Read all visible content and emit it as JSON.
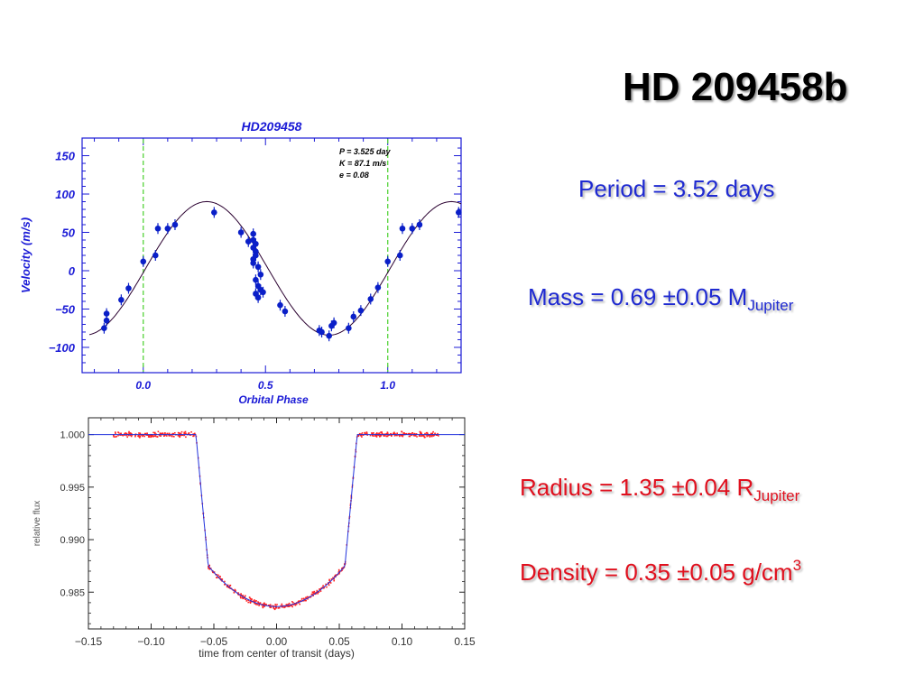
{
  "slide": {
    "title": "HD 209458b",
    "period_text": "Period = 3.52 days",
    "mass_text": "Mass = 0.69 ±0.05 M",
    "mass_sub": "Jupiter",
    "radius_text": "Radius = 1.35 ±0.04 R",
    "radius_sub": "Jupiter",
    "density_text": "Density = 0.35 ±0.05 g/cm",
    "density_sup": "3",
    "colors": {
      "title": "#000000",
      "blue_text": "#1f2ad1",
      "red_text": "#e0101e"
    }
  },
  "chart_data": [
    {
      "type": "scatter",
      "title": "HD209458",
      "xlabel": "Orbital Phase",
      "ylabel": "Velocity  (m/s)",
      "xlim": [
        -0.25,
        1.3
      ],
      "ylim": [
        -133,
        173
      ],
      "x_ticks": [
        0.0,
        0.5,
        1.0
      ],
      "x_tick_labels": [
        "0.0",
        "0.5",
        "1.0"
      ],
      "y_ticks": [
        150,
        100,
        50,
        0,
        -50,
        -100
      ],
      "y_tick_labels": [
        "150",
        "100",
        "50",
        "0",
        "−50",
        "−100"
      ],
      "annotations": [
        "P = 3.525 day",
        "K = 87.1 m/s",
        "e = 0.08"
      ],
      "vlines": [
        0.0,
        1.0
      ],
      "colors": {
        "points": "#0a1fc8",
        "model": "#2a0030",
        "vline": "#55d33a",
        "axes_text": "#1a1ad6"
      },
      "model": {
        "K": 87.1,
        "phase_of_max": 0.26,
        "offset": 3
      },
      "points": [
        {
          "x": -0.16,
          "y": -75
        },
        {
          "x": -0.15,
          "y": -65
        },
        {
          "x": -0.15,
          "y": -56
        },
        {
          "x": -0.09,
          "y": -38
        },
        {
          "x": -0.06,
          "y": -23
        },
        {
          "x": 0.0,
          "y": 12
        },
        {
          "x": 0.05,
          "y": 20
        },
        {
          "x": 0.06,
          "y": 55
        },
        {
          "x": 0.1,
          "y": 55
        },
        {
          "x": 0.13,
          "y": 60
        },
        {
          "x": 0.29,
          "y": 76
        },
        {
          "x": 0.4,
          "y": 50
        },
        {
          "x": 0.43,
          "y": 38
        },
        {
          "x": 0.45,
          "y": 48
        },
        {
          "x": 0.45,
          "y": 40
        },
        {
          "x": 0.45,
          "y": 30
        },
        {
          "x": 0.46,
          "y": 25
        },
        {
          "x": 0.45,
          "y": 15
        },
        {
          "x": 0.46,
          "y": 20
        },
        {
          "x": 0.46,
          "y": 35
        },
        {
          "x": 0.45,
          "y": 10
        },
        {
          "x": 0.47,
          "y": 5
        },
        {
          "x": 0.48,
          "y": -5
        },
        {
          "x": 0.46,
          "y": -12
        },
        {
          "x": 0.47,
          "y": -20
        },
        {
          "x": 0.48,
          "y": -25
        },
        {
          "x": 0.46,
          "y": -30
        },
        {
          "x": 0.47,
          "y": -35
        },
        {
          "x": 0.49,
          "y": -28
        },
        {
          "x": 0.56,
          "y": -45
        },
        {
          "x": 0.58,
          "y": -53
        },
        {
          "x": 0.72,
          "y": -78
        },
        {
          "x": 0.73,
          "y": -80
        },
        {
          "x": 0.76,
          "y": -85
        },
        {
          "x": 0.77,
          "y": -72
        },
        {
          "x": 0.78,
          "y": -68
        },
        {
          "x": 0.84,
          "y": -75
        },
        {
          "x": 0.86,
          "y": -60
        },
        {
          "x": 0.89,
          "y": -52
        },
        {
          "x": 0.93,
          "y": -37
        },
        {
          "x": 0.96,
          "y": -22
        },
        {
          "x": 1.0,
          "y": 12
        },
        {
          "x": 1.05,
          "y": 20
        },
        {
          "x": 1.06,
          "y": 55
        },
        {
          "x": 1.1,
          "y": 55
        },
        {
          "x": 1.13,
          "y": 60
        },
        {
          "x": 1.29,
          "y": 76
        }
      ]
    },
    {
      "type": "line",
      "xlabel": "time from center of transit (days)",
      "ylabel": "relative flux",
      "xlim": [
        -0.15,
        0.15
      ],
      "ylim": [
        0.9815,
        1.0016
      ],
      "x_ticks": [
        -0.15,
        -0.1,
        -0.05,
        0.0,
        0.05,
        0.1,
        0.15
      ],
      "x_tick_labels": [
        "−0.15",
        "−0.10",
        "−0.05",
        "0.00",
        "0.05",
        "0.10",
        "0.15"
      ],
      "y_ticks": [
        1.0,
        0.995,
        0.99,
        0.985
      ],
      "y_tick_labels": [
        "1.000",
        "0.995",
        "0.990",
        "0.985"
      ],
      "colors": {
        "model": "#2233dd",
        "points": "#ff2020"
      },
      "model": {
        "depth_center": 0.01637,
        "ingress_start": 0.0643,
        "ingress_end": 0.0545,
        "depth_at_ingress_end": 0.0125,
        "limb_darkening_power": 2
      },
      "observed_time_range": [
        -0.13,
        0.13
      ]
    }
  ]
}
